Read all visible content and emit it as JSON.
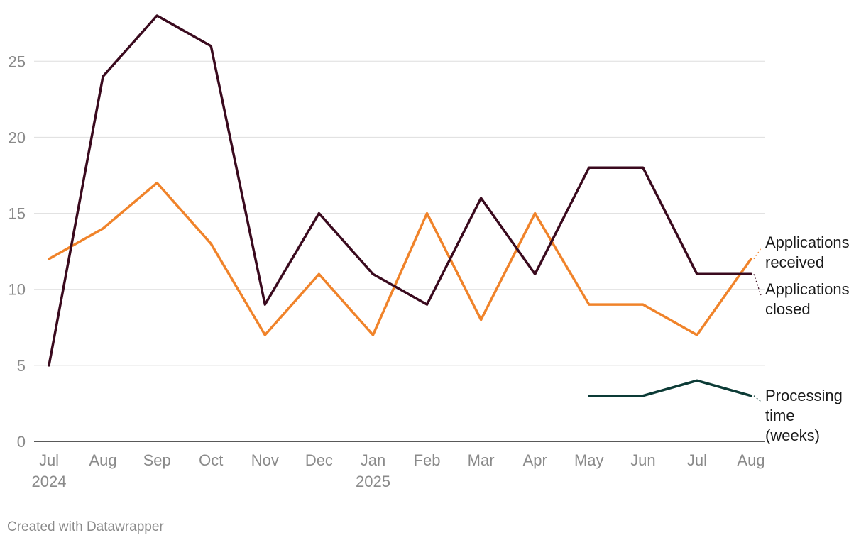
{
  "chart_data": {
    "type": "line",
    "categories": [
      "Jul 2024",
      "Aug 2024",
      "Sep 2024",
      "Oct 2024",
      "Nov 2024",
      "Dec 2024",
      "Jan 2025",
      "Feb 2025",
      "Mar 2025",
      "Apr 2025",
      "May 2025",
      "Jun 2025",
      "Jul 2025",
      "Aug 2025"
    ],
    "x_tick_labels": [
      [
        "Jul",
        "2024"
      ],
      [
        "Aug"
      ],
      [
        "Sep"
      ],
      [
        "Oct"
      ],
      [
        "Nov"
      ],
      [
        "Dec"
      ],
      [
        "Jan",
        "2025"
      ],
      [
        "Feb"
      ],
      [
        "Mar"
      ],
      [
        "Apr"
      ],
      [
        "May"
      ],
      [
        "Jun"
      ],
      [
        "Jul"
      ],
      [
        "Aug"
      ]
    ],
    "y_ticks": [
      0,
      5,
      10,
      15,
      20,
      25
    ],
    "ylim": [
      0,
      28
    ],
    "grid": true,
    "series": [
      {
        "name": "Applications received",
        "label_lines": [
          "Applications",
          "received"
        ],
        "color": "#f0832a",
        "values": [
          12,
          14,
          17,
          13,
          7,
          11,
          7,
          15,
          8,
          15,
          9,
          9,
          7,
          12
        ]
      },
      {
        "name": "Applications closed",
        "label_lines": [
          "Applications",
          "closed"
        ],
        "color": "#3a0a1e",
        "values": [
          5,
          24,
          28,
          26,
          9,
          15,
          11,
          9,
          16,
          11,
          18,
          18,
          11,
          11
        ]
      },
      {
        "name": "Processing time (weeks)",
        "label_lines": [
          "Processing",
          "time",
          "(weeks)"
        ],
        "color": "#0c3b36",
        "values": [
          null,
          null,
          null,
          null,
          null,
          null,
          null,
          null,
          null,
          null,
          3,
          3,
          4,
          3
        ]
      }
    ]
  },
  "footer": "Created with Datawrapper"
}
